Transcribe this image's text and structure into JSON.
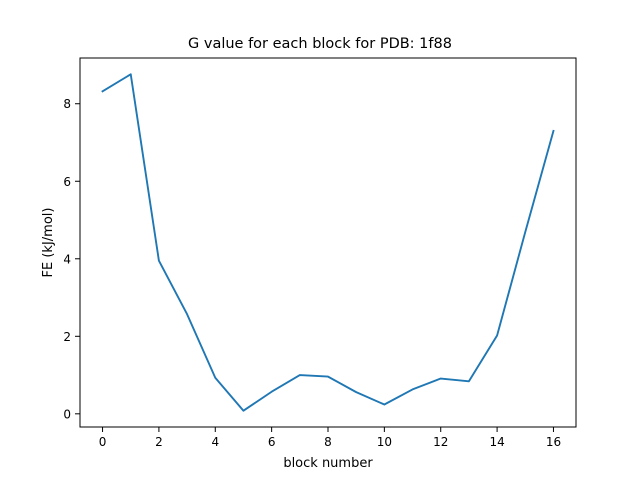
{
  "chart_data": {
    "type": "line",
    "title": "G value for each block for PDB: 1f88",
    "xlabel": "block number",
    "ylabel": "FE (kJ/mol)",
    "xlim": [
      -0.8,
      16.8
    ],
    "ylim": [
      -0.34,
      9.18
    ],
    "xticks": [
      0,
      2,
      4,
      6,
      8,
      10,
      12,
      14,
      16
    ],
    "yticks": [
      0,
      2,
      4,
      6,
      8
    ],
    "grid": false,
    "series": [
      {
        "color": "#1f77b4",
        "x": [
          0,
          1,
          2,
          3,
          4,
          5,
          6,
          7,
          8,
          9,
          10,
          11,
          12,
          13,
          14,
          15,
          16
        ],
        "y": [
          8.32,
          8.76,
          3.95,
          2.57,
          0.93,
          0.08,
          0.57,
          1.0,
          0.96,
          0.56,
          0.24,
          0.63,
          0.91,
          0.84,
          2.02,
          4.69,
          7.3
        ]
      }
    ]
  }
}
